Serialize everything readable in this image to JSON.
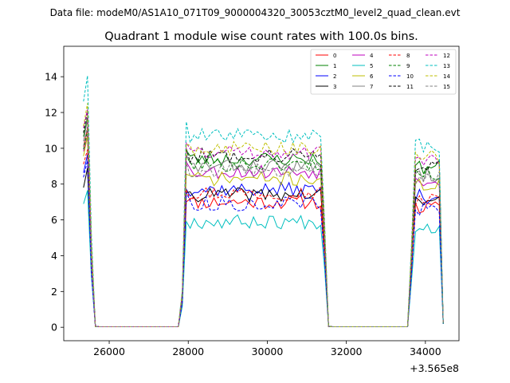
{
  "figure": {
    "suptitle": "Data file: modeM0/AS1A10_071T09_9000004320_30053cztM0_level2_quad_clean.evt"
  },
  "chart_data": {
    "type": "line",
    "title": "Quadrant 1 module wise count rates with 100.0s bins.",
    "xlabel": "",
    "ylabel": "",
    "x_offset_label": "+3.565e8",
    "xlim": [
      24850,
      34850
    ],
    "ylim": [
      -0.75,
      15.7
    ],
    "x_ticks": [
      26000,
      28000,
      30000,
      32000,
      34000
    ],
    "y_ticks": [
      0,
      2,
      4,
      6,
      8,
      10,
      12,
      14
    ],
    "grid": false,
    "legend": {
      "placement": "top-right",
      "columns": 4
    },
    "segments": [
      {
        "start": 25350,
        "end": 25650
      },
      {
        "start": 27850,
        "end": 31450
      },
      {
        "start": 33650,
        "end": 34450
      }
    ],
    "gap_ranges": [
      [
        25650,
        27750
      ],
      [
        31550,
        33550
      ]
    ],
    "series": [
      {
        "name": "0",
        "color": "#ff0000",
        "dash": false,
        "level": 7.0,
        "pre": 11.2,
        "seed": 11
      },
      {
        "name": "1",
        "color": "#008000",
        "dash": false,
        "level": 9.4,
        "pre": 11.8,
        "seed": 23
      },
      {
        "name": "2",
        "color": "#0000ff",
        "dash": false,
        "level": 7.7,
        "pre": 9.6,
        "seed": 37
      },
      {
        "name": "3",
        "color": "#000000",
        "dash": false,
        "level": 7.4,
        "pre": 8.7,
        "seed": 41
      },
      {
        "name": "4",
        "color": "#bf00bf",
        "dash": false,
        "level": 8.7,
        "pre": 10.9,
        "seed": 53
      },
      {
        "name": "5",
        "color": "#00bfbf",
        "dash": false,
        "level": 5.9,
        "pre": 7.7,
        "seed": 67
      },
      {
        "name": "6",
        "color": "#bfbf00",
        "dash": false,
        "level": 8.3,
        "pre": 10.6,
        "seed": 71
      },
      {
        "name": "7",
        "color": "#808080",
        "dash": false,
        "level": 9.0,
        "pre": 11.5,
        "seed": 83
      },
      {
        "name": "8",
        "color": "#ff0000",
        "dash": true,
        "level": 7.5,
        "pre": 10.1,
        "seed": 97
      },
      {
        "name": "9",
        "color": "#008000",
        "dash": true,
        "level": 9.1,
        "pre": 11.0,
        "seed": 101
      },
      {
        "name": "10",
        "color": "#0000ff",
        "dash": true,
        "level": 6.9,
        "pre": 9.3,
        "seed": 113
      },
      {
        "name": "11",
        "color": "#000000",
        "dash": true,
        "level": 9.6,
        "pre": 12.0,
        "seed": 127
      },
      {
        "name": "12",
        "color": "#bf00bf",
        "dash": true,
        "level": 9.8,
        "pre": 12.3,
        "seed": 131
      },
      {
        "name": "13",
        "color": "#00bfbf",
        "dash": true,
        "level": 10.7,
        "pre": 13.9,
        "seed": 139
      },
      {
        "name": "14",
        "color": "#bfbf00",
        "dash": true,
        "level": 10.0,
        "pre": 12.4,
        "seed": 149
      },
      {
        "name": "15",
        "color": "#808080",
        "dash": true,
        "level": 8.8,
        "pre": 11.2,
        "seed": 157
      }
    ]
  }
}
